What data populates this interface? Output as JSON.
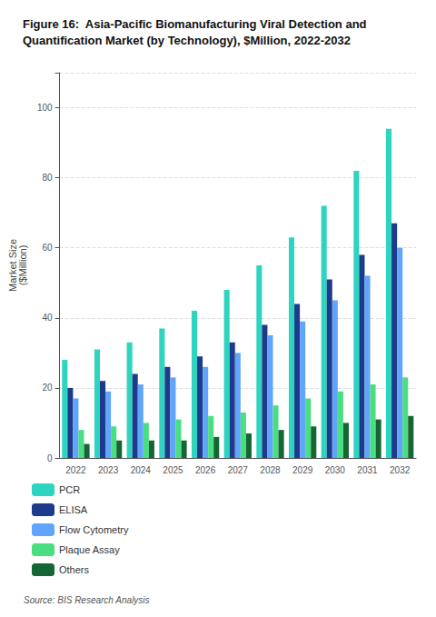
{
  "chart_data": {
    "type": "bar",
    "title": "Figure 16:  Asia-Pacific Biomanufacturing Viral Detection and Quantification Market (by Technology), $Million, 2022-2032",
    "ylabel": "Market Size\n($Million)",
    "annotations": [
      "Source: BIS Research Analysis"
    ],
    "categories": [
      "2022",
      "2023",
      "2024",
      "2025",
      "2026",
      "2027",
      "2028",
      "2029",
      "2030",
      "2031",
      "2032"
    ],
    "series": [
      {
        "name": "PCR",
        "color": "#2dd4bf",
        "values": [
          28,
          31,
          33,
          37,
          42,
          48,
          55,
          63,
          72,
          82,
          94
        ]
      },
      {
        "name": "ELISA",
        "color": "#1e3a8a",
        "values": [
          20,
          22,
          24,
          26,
          29,
          33,
          38,
          44,
          51,
          58,
          67
        ]
      },
      {
        "name": "Flow Cytometry",
        "color": "#60a5fa",
        "values": [
          17,
          19,
          21,
          23,
          26,
          30,
          35,
          39,
          45,
          52,
          60
        ]
      },
      {
        "name": "Plaque Assay",
        "color": "#4ade80",
        "values": [
          8,
          9,
          10,
          11,
          12,
          13,
          15,
          17,
          19,
          21,
          23
        ]
      },
      {
        "name": "Others",
        "color": "#166534",
        "values": [
          4,
          5,
          5,
          5,
          6,
          7,
          8,
          9,
          10,
          11,
          12
        ]
      }
    ],
    "ylim": [
      0,
      110
    ],
    "yticks": [
      0,
      20,
      40,
      60,
      80,
      100
    ],
    "grid": true,
    "legend": "bottom"
  }
}
